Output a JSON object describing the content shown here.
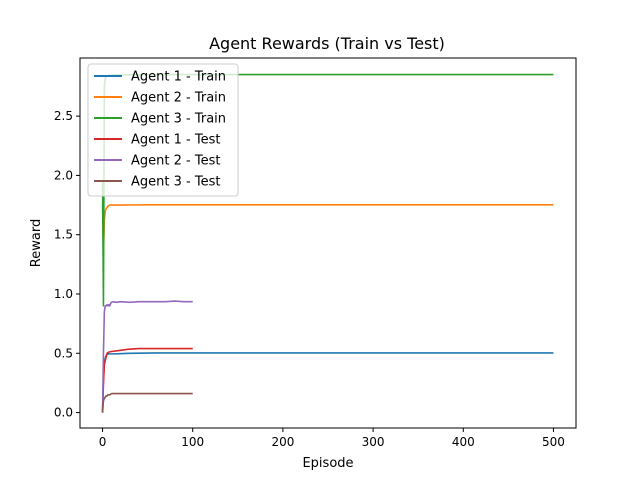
{
  "chart_data": {
    "type": "line",
    "title": "Agent Rewards (Train vs Test)",
    "xlabel": "Episode",
    "ylabel": "Reward",
    "xlim": [
      -25,
      525
    ],
    "ylim": [
      -0.13,
      2.99
    ],
    "xticks": [
      0,
      100,
      200,
      300,
      400,
      500
    ],
    "yticks": [
      0.0,
      0.5,
      1.0,
      1.5,
      2.0,
      2.5
    ],
    "ytick_labels": [
      "0.0",
      "0.5",
      "1.0",
      "1.5",
      "2.0",
      "2.5"
    ],
    "grid": false,
    "legend_position": "top-left",
    "series": [
      {
        "name": "Agent 1 - Train",
        "color": "#1f77b4",
        "x": [
          0,
          1,
          2,
          3,
          4,
          5,
          7,
          10,
          20,
          30,
          60,
          100,
          200,
          300,
          400,
          500
        ],
        "y": [
          0.0,
          0.28,
          0.42,
          0.46,
          0.48,
          0.49,
          0.495,
          0.495,
          0.497,
          0.5,
          0.503,
          0.503,
          0.503,
          0.503,
          0.503,
          0.503
        ]
      },
      {
        "name": "Agent 2 - Train",
        "color": "#ff7f0e",
        "x": [
          0,
          1,
          2,
          3,
          4,
          6,
          8,
          10,
          20,
          50,
          100,
          200,
          300,
          400,
          500
        ],
        "y": [
          1.75,
          1.35,
          1.62,
          1.7,
          1.72,
          1.74,
          1.75,
          1.75,
          1.75,
          1.752,
          1.752,
          1.752,
          1.752,
          1.752,
          1.752
        ]
      },
      {
        "name": "Agent 3 - Train",
        "color": "#2ca02c",
        "x": [
          0,
          1,
          2,
          3,
          5,
          10,
          20,
          100,
          200,
          300,
          400,
          500
        ],
        "y": [
          1.95,
          0.9,
          2.75,
          2.82,
          2.84,
          2.845,
          2.848,
          2.85,
          2.85,
          2.85,
          2.85,
          2.85
        ]
      },
      {
        "name": "Agent 1 - Test",
        "color": "#d62728",
        "x": [
          0,
          1,
          2,
          3,
          4,
          5,
          7,
          10,
          15,
          20,
          25,
          30,
          40,
          50,
          60,
          70,
          80,
          90,
          100
        ],
        "y": [
          0.0,
          0.25,
          0.4,
          0.44,
          0.47,
          0.5,
          0.51,
          0.515,
          0.52,
          0.525,
          0.53,
          0.535,
          0.54,
          0.54,
          0.54,
          0.54,
          0.54,
          0.54,
          0.54
        ]
      },
      {
        "name": "Agent 2 - Test",
        "color": "#9467bd",
        "x": [
          0,
          1,
          2,
          3,
          4,
          5,
          6,
          7,
          8,
          9,
          10,
          12,
          15,
          20,
          30,
          40,
          50,
          60,
          70,
          80,
          90,
          100
        ],
        "y": [
          0.0,
          0.5,
          0.85,
          0.9,
          0.9,
          0.91,
          0.9,
          0.91,
          0.9,
          0.92,
          0.93,
          0.935,
          0.93,
          0.935,
          0.93,
          0.935,
          0.935,
          0.935,
          0.935,
          0.94,
          0.935,
          0.935
        ]
      },
      {
        "name": "Agent 3 - Test",
        "color": "#8c564b",
        "x": [
          0,
          1,
          2,
          3,
          4,
          5,
          6,
          8,
          10,
          15,
          20,
          40,
          60,
          80,
          100
        ],
        "y": [
          0.0,
          0.1,
          0.12,
          0.13,
          0.14,
          0.14,
          0.15,
          0.15,
          0.16,
          0.16,
          0.16,
          0.16,
          0.16,
          0.16,
          0.16
        ]
      }
    ]
  }
}
